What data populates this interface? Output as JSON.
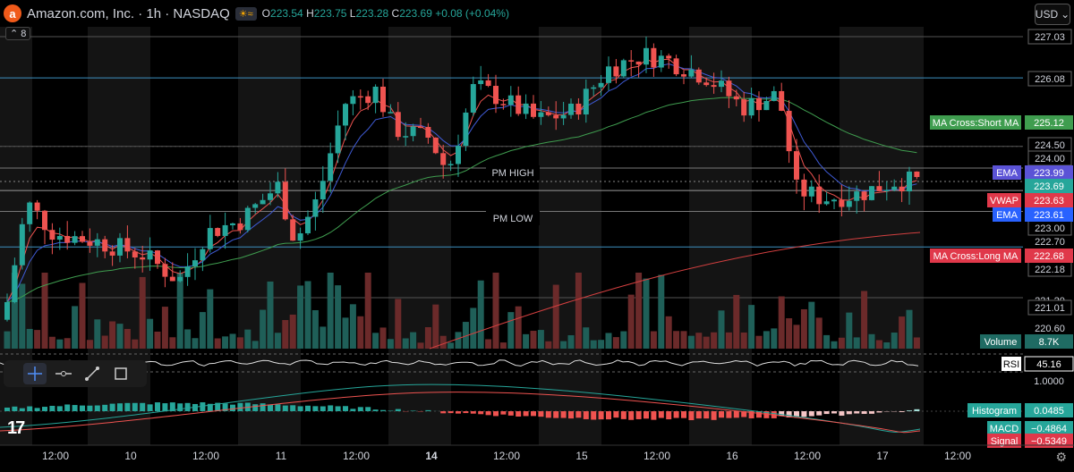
{
  "header": {
    "symbol_title": "Amazon.com, Inc. · 1h · NASDAQ",
    "logo_letter": "a",
    "badge": "≈",
    "ohlc": {
      "o_label": "O",
      "o": "223.54",
      "h_label": "H",
      "h": "223.75",
      "l_label": "L",
      "l": "223.28",
      "c_label": "C",
      "c": "223.69",
      "change": "+0.08 (+0.04%)"
    },
    "collapse_count": "8",
    "currency": "USD"
  },
  "axis": {
    "price_ticks": [
      "227.03",
      "226.08",
      "225.12",
      "224.50",
      "224.00",
      "223.99",
      "223.69",
      "223.63",
      "223.61",
      "223.00",
      "222.70",
      "222.68",
      "222.18",
      "221.20",
      "221.01",
      "220.60"
    ],
    "time_ticks": [
      "12:00",
      "10",
      "12:00",
      "11",
      "12:00",
      "14",
      "12:00",
      "15",
      "12:00",
      "16",
      "12:00",
      "17",
      "12:00"
    ],
    "bold_time_tick": "14"
  },
  "levels": {
    "pm_high": "PM HIGH",
    "pm_low": "PM LOW"
  },
  "labels": {
    "ma_short": {
      "name": "MA Cross:Short MA",
      "value": "225.12"
    },
    "ema1": {
      "name": "EMA",
      "value": "223.99"
    },
    "vwap": {
      "name": "VWAP",
      "value": "223.63"
    },
    "ema2": {
      "name": "EMA",
      "value": "223.61"
    },
    "ma_long": {
      "name": "MA Cross:Long MA",
      "value": "222.68"
    },
    "volume": {
      "name": "Volume",
      "value": "8.7K"
    },
    "rsi": {
      "name": "RSI",
      "value": "45.16"
    },
    "rsi_scale": "1.0000",
    "histogram": {
      "name": "Histogram",
      "value": "0.0485"
    },
    "macd": {
      "name": "MACD",
      "value": "−0.4864"
    },
    "signal": {
      "name": "Signal",
      "value": "−0.5349"
    }
  },
  "colors": {
    "up": "#26a69a",
    "down": "#ef5350",
    "ema_fast": "#ef5350",
    "ema_blue": "#3f5bd6",
    "ma_short": "#3f9d4f",
    "ma_long": "#d44040",
    "level_cyan": "#3d8fbf",
    "level_gray": "#787b86"
  },
  "tools": [
    "crosshair-icon",
    "horizontal-ray-icon",
    "trend-line-icon",
    "rectangle-icon"
  ]
}
